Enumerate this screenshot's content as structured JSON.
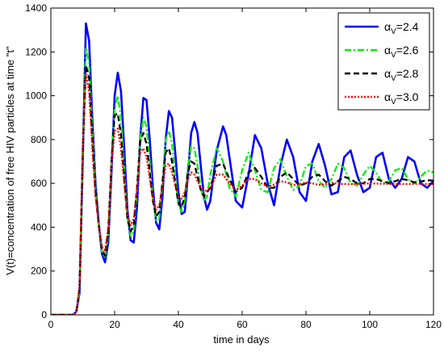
{
  "chart_data": {
    "type": "line",
    "xlabel": "time in days",
    "ylabel": "V(t)=concentration of free HIV particles at time \"t\"",
    "xlim": [
      0,
      120
    ],
    "ylim": [
      0,
      1400
    ],
    "xticks": [
      "0",
      "20",
      "40",
      "60",
      "80",
      "100",
      "120"
    ],
    "yticks": [
      "0",
      "200",
      "400",
      "600",
      "800",
      "1000",
      "1200",
      "1400"
    ],
    "legend_position": "top-right",
    "grid": false,
    "series": [
      {
        "name": "=2.4",
        "symbol": "α",
        "subscript": "V",
        "color": "#0000ff",
        "dash": "solid",
        "x": [
          0,
          7,
          8,
          9,
          10,
          11,
          12,
          13,
          14,
          15,
          16,
          17,
          18,
          19,
          20,
          21,
          22,
          23,
          24,
          25,
          26,
          27,
          28,
          29,
          30,
          31,
          32,
          33,
          34,
          35,
          36,
          37,
          38,
          39,
          40,
          41,
          42,
          43,
          44,
          45,
          46,
          47,
          48,
          49,
          50,
          52,
          54,
          55,
          56,
          58,
          60,
          62,
          64,
          66,
          68,
          70,
          72,
          74,
          76,
          78,
          80,
          82,
          84,
          86,
          88,
          90,
          92,
          94,
          96,
          98,
          100,
          102,
          104,
          106,
          108,
          110,
          112,
          114,
          116,
          118,
          120
        ],
        "y": [
          0,
          0,
          15,
          100,
          700,
          1330,
          1250,
          900,
          600,
          420,
          280,
          240,
          330,
          650,
          1000,
          1105,
          1020,
          760,
          480,
          340,
          330,
          490,
          800,
          990,
          980,
          800,
          580,
          420,
          390,
          540,
          800,
          930,
          900,
          740,
          560,
          460,
          470,
          640,
          830,
          880,
          830,
          680,
          540,
          480,
          520,
          750,
          860,
          820,
          720,
          520,
          490,
          640,
          820,
          760,
          600,
          500,
          680,
          800,
          720,
          560,
          520,
          700,
          780,
          680,
          550,
          560,
          720,
          750,
          640,
          560,
          580,
          720,
          740,
          620,
          580,
          620,
          720,
          700,
          600,
          580,
          610
        ]
      },
      {
        "name": "=2.6",
        "symbol": "α",
        "subscript": "V",
        "color": "#00ee00",
        "dash": "8,3,2,3",
        "x": [
          0,
          7,
          8,
          9,
          10,
          11,
          12,
          13,
          14,
          15,
          16,
          17,
          18,
          19,
          20,
          21,
          22,
          23,
          24,
          25,
          26,
          27,
          28,
          29,
          30,
          31,
          32,
          33,
          34,
          35,
          36,
          37,
          38,
          39,
          40,
          41,
          42,
          43,
          44,
          45,
          46,
          47,
          48,
          49,
          50,
          52,
          54,
          56,
          58,
          60,
          62,
          64,
          66,
          68,
          70,
          72,
          74,
          76,
          78,
          80,
          82,
          84,
          86,
          88,
          90,
          92,
          94,
          96,
          98,
          100,
          102,
          104,
          106,
          108,
          110,
          112,
          114,
          116,
          118,
          120
        ],
        "y": [
          0,
          0,
          15,
          110,
          720,
          1220,
          1150,
          850,
          580,
          410,
          290,
          260,
          360,
          700,
          940,
          1000,
          900,
          660,
          440,
          360,
          380,
          560,
          800,
          900,
          860,
          700,
          530,
          430,
          440,
          600,
          800,
          840,
          780,
          630,
          500,
          470,
          520,
          680,
          770,
          760,
          680,
          580,
          520,
          540,
          640,
          760,
          700,
          580,
          540,
          660,
          740,
          660,
          570,
          560,
          670,
          710,
          630,
          570,
          590,
          680,
          690,
          610,
          580,
          620,
          690,
          670,
          600,
          590,
          640,
          680,
          650,
          600,
          610,
          660,
          670,
          620,
          600,
          630,
          660,
          650
        ]
      },
      {
        "name": "=2.8",
        "symbol": "α",
        "subscript": "V",
        "color": "#000000",
        "dash": "7,4",
        "x": [
          0,
          7,
          8,
          9,
          10,
          11,
          12,
          13,
          14,
          15,
          16,
          17,
          18,
          19,
          20,
          21,
          22,
          23,
          24,
          25,
          26,
          27,
          28,
          29,
          30,
          31,
          32,
          33,
          34,
          35,
          36,
          37,
          38,
          39,
          40,
          41,
          42,
          43,
          44,
          45,
          46,
          47,
          48,
          50,
          52,
          54,
          56,
          58,
          60,
          62,
          64,
          66,
          68,
          70,
          72,
          74,
          76,
          78,
          80,
          82,
          84,
          86,
          88,
          90,
          92,
          94,
          96,
          98,
          100,
          102,
          104,
          106,
          108,
          110,
          112,
          114,
          116,
          118,
          120
        ],
        "y": [
          0,
          0,
          15,
          120,
          740,
          1140,
          1080,
          800,
          560,
          410,
          300,
          270,
          380,
          700,
          910,
          920,
          820,
          620,
          440,
          380,
          410,
          580,
          790,
          830,
          780,
          650,
          520,
          450,
          470,
          610,
          740,
          760,
          700,
          600,
          510,
          490,
          540,
          650,
          700,
          690,
          630,
          570,
          540,
          580,
          680,
          690,
          620,
          560,
          580,
          650,
          670,
          630,
          580,
          580,
          630,
          650,
          620,
          590,
          600,
          630,
          640,
          610,
          590,
          610,
          630,
          620,
          600,
          600,
          620,
          620,
          610,
          600,
          610,
          620,
          615,
          605,
          608,
          615,
          612
        ]
      },
      {
        "name": "=3.0",
        "symbol": "α",
        "subscript": "V",
        "color": "#ff0000",
        "dash": "2,2",
        "x": [
          0,
          7,
          8,
          9,
          10,
          11,
          12,
          13,
          14,
          15,
          16,
          17,
          18,
          19,
          20,
          21,
          22,
          23,
          24,
          25,
          26,
          27,
          28,
          29,
          30,
          31,
          32,
          33,
          34,
          35,
          36,
          37,
          38,
          39,
          40,
          41,
          42,
          43,
          44,
          45,
          46,
          48,
          50,
          52,
          54,
          56,
          58,
          60,
          62,
          64,
          66,
          68,
          70,
          72,
          74,
          76,
          78,
          80,
          82,
          84,
          86,
          88,
          90,
          95,
          100,
          105,
          110,
          115,
          120
        ],
        "y": [
          0,
          0,
          15,
          130,
          760,
          1100,
          1020,
          760,
          540,
          410,
          310,
          290,
          400,
          680,
          840,
          850,
          760,
          600,
          460,
          410,
          440,
          580,
          740,
          760,
          720,
          620,
          530,
          480,
          500,
          590,
          680,
          690,
          650,
          590,
          540,
          530,
          560,
          620,
          650,
          640,
          610,
          560,
          580,
          640,
          640,
          600,
          570,
          590,
          620,
          620,
          600,
          585,
          595,
          610,
          605,
          592,
          595,
          605,
          600,
          593,
          597,
          603,
          598,
          596,
          600,
          598,
          597,
          598,
          597
        ]
      }
    ]
  }
}
